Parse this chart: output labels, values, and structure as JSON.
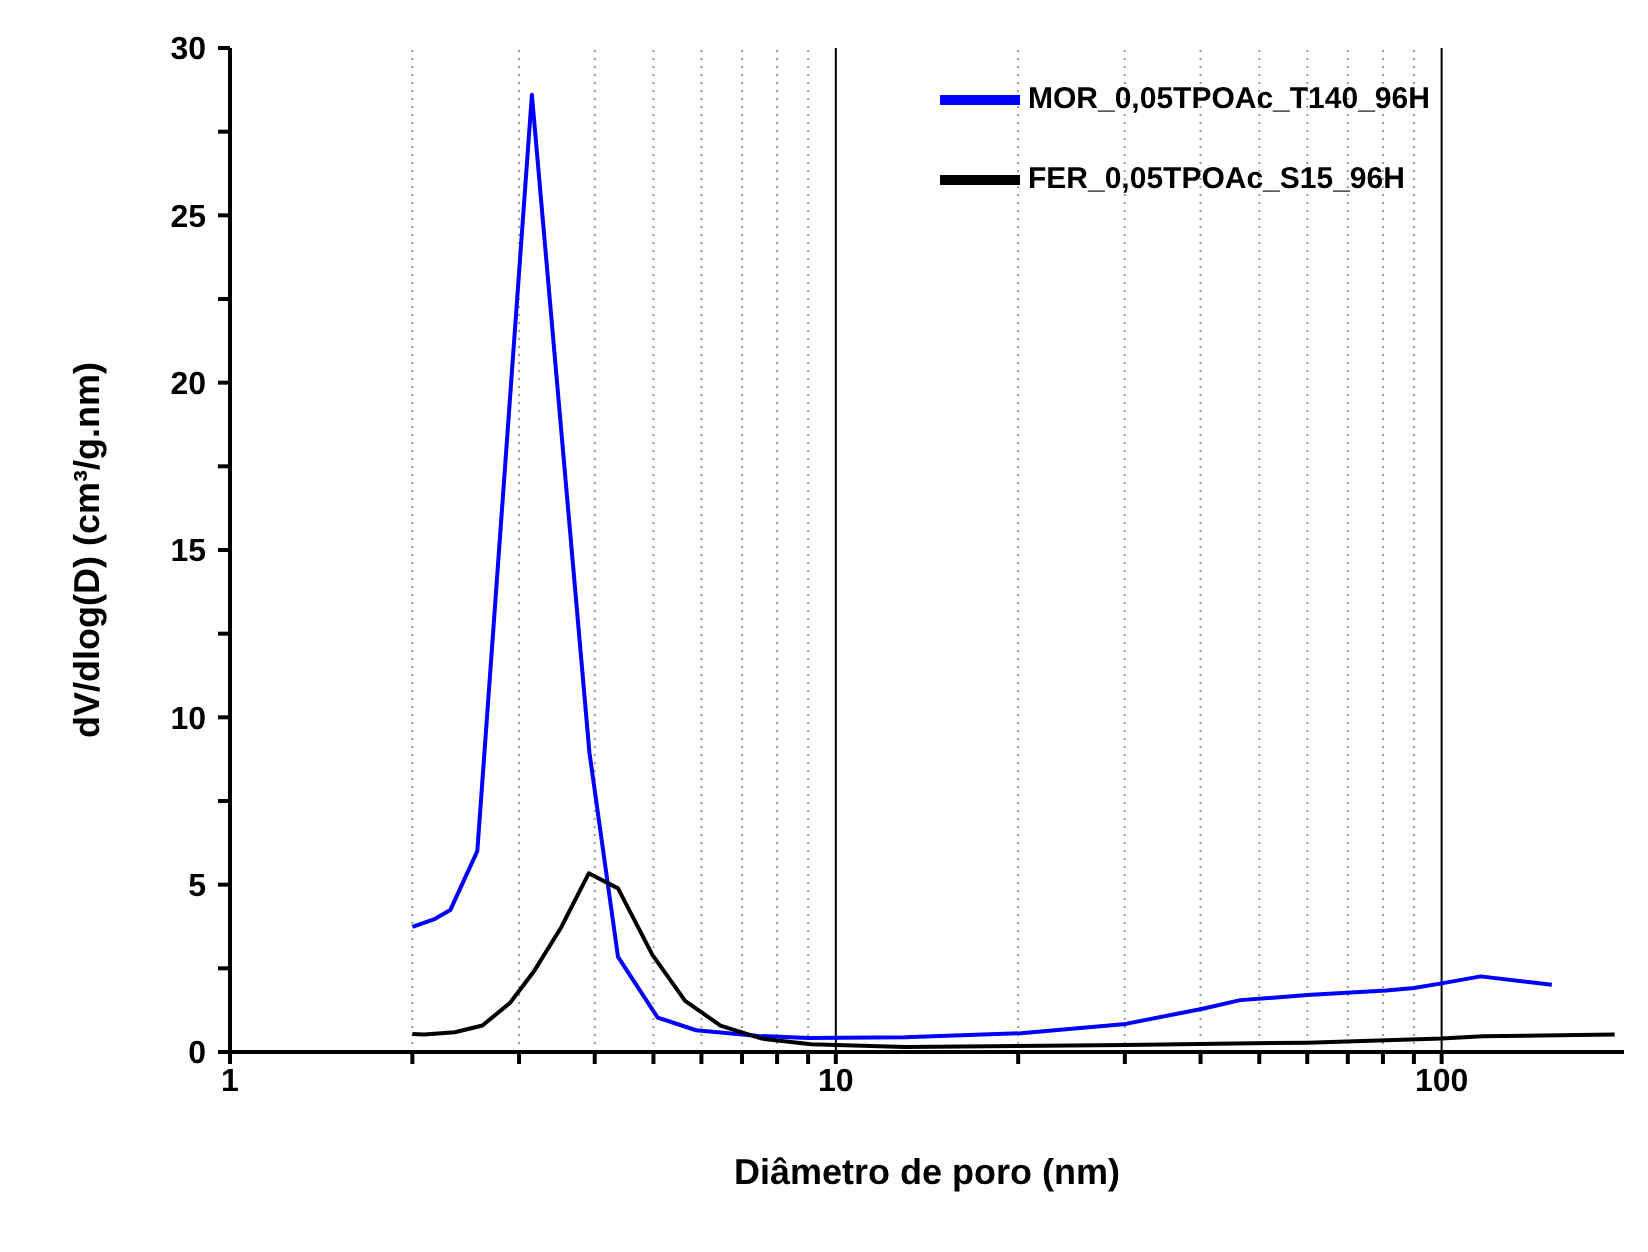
{
  "chart_data": {
    "type": "line",
    "xlabel": "Diâmetro de poro (nm)",
    "ylabel": "dV/dlog(D) (cm³/g.nm)",
    "log": "x",
    "xlim": [
      1,
      200
    ],
    "ylim": [
      0,
      30
    ],
    "xticks": [
      1,
      {
        "value": 2,
        "label": null
      },
      {
        "value": 3,
        "label": null
      },
      {
        "value": 4,
        "label": null
      },
      {
        "value": 5,
        "label": null
      },
      {
        "value": 6,
        "label": null
      },
      {
        "value": 7,
        "label": null
      },
      {
        "value": 8,
        "label": null
      },
      {
        "value": 9,
        "label": null
      },
      10,
      {
        "value": 20,
        "label": null
      },
      {
        "value": 30,
        "label": null
      },
      {
        "value": 40,
        "label": null
      },
      {
        "value": 50,
        "label": null
      },
      {
        "value": 60,
        "label": null
      },
      {
        "value": 70,
        "label": null
      },
      {
        "value": 80,
        "label": null
      },
      {
        "value": 90,
        "label": null
      },
      100
    ],
    "yticks": [
      0,
      {
        "value": 2.5,
        "label": null
      },
      5,
      {
        "value": 7.5,
        "label": null
      },
      10,
      {
        "value": 12.5,
        "label": null
      },
      15,
      {
        "value": 17.5,
        "label": null
      },
      20,
      {
        "value": 22.5,
        "label": null
      },
      25,
      {
        "value": 27.5,
        "label": null
      },
      30
    ],
    "grid": "x",
    "legend": "top right",
    "marker": "none",
    "line_style": "solid",
    "series": [
      {
        "name": "MOR_0,05TPOAc_T140_96H",
        "color": "#0000ff",
        "x": [
          2.0,
          2.17,
          2.31,
          2.56,
          3.15,
          3.92,
          4.37,
          5.08,
          5.88,
          7.45,
          9.0,
          13,
          20.2,
          30.1,
          40.5,
          46.5,
          60,
          81,
          90,
          100,
          116,
          152
        ],
        "values": [
          3.74,
          3.96,
          4.24,
          6.0,
          28.6,
          8.95,
          2.84,
          1.03,
          0.65,
          0.48,
          0.42,
          0.44,
          0.56,
          0.84,
          1.3,
          1.55,
          1.7,
          1.84,
          1.91,
          2.05,
          2.26,
          2.01
        ]
      },
      {
        "name": "FER_0,05TPOAc_S15_96H",
        "color": "#000000",
        "x": [
          2.0,
          2.09,
          2.35,
          2.61,
          2.9,
          3.18,
          3.52,
          3.91,
          4.37,
          4.98,
          5.64,
          6.45,
          7.55,
          9.1,
          13,
          30,
          60,
          100,
          117,
          193
        ],
        "values": [
          0.54,
          0.52,
          0.59,
          0.79,
          1.47,
          2.43,
          3.72,
          5.34,
          4.89,
          2.9,
          1.53,
          0.79,
          0.4,
          0.23,
          0.15,
          0.21,
          0.28,
          0.4,
          0.47,
          0.52
        ]
      }
    ]
  }
}
